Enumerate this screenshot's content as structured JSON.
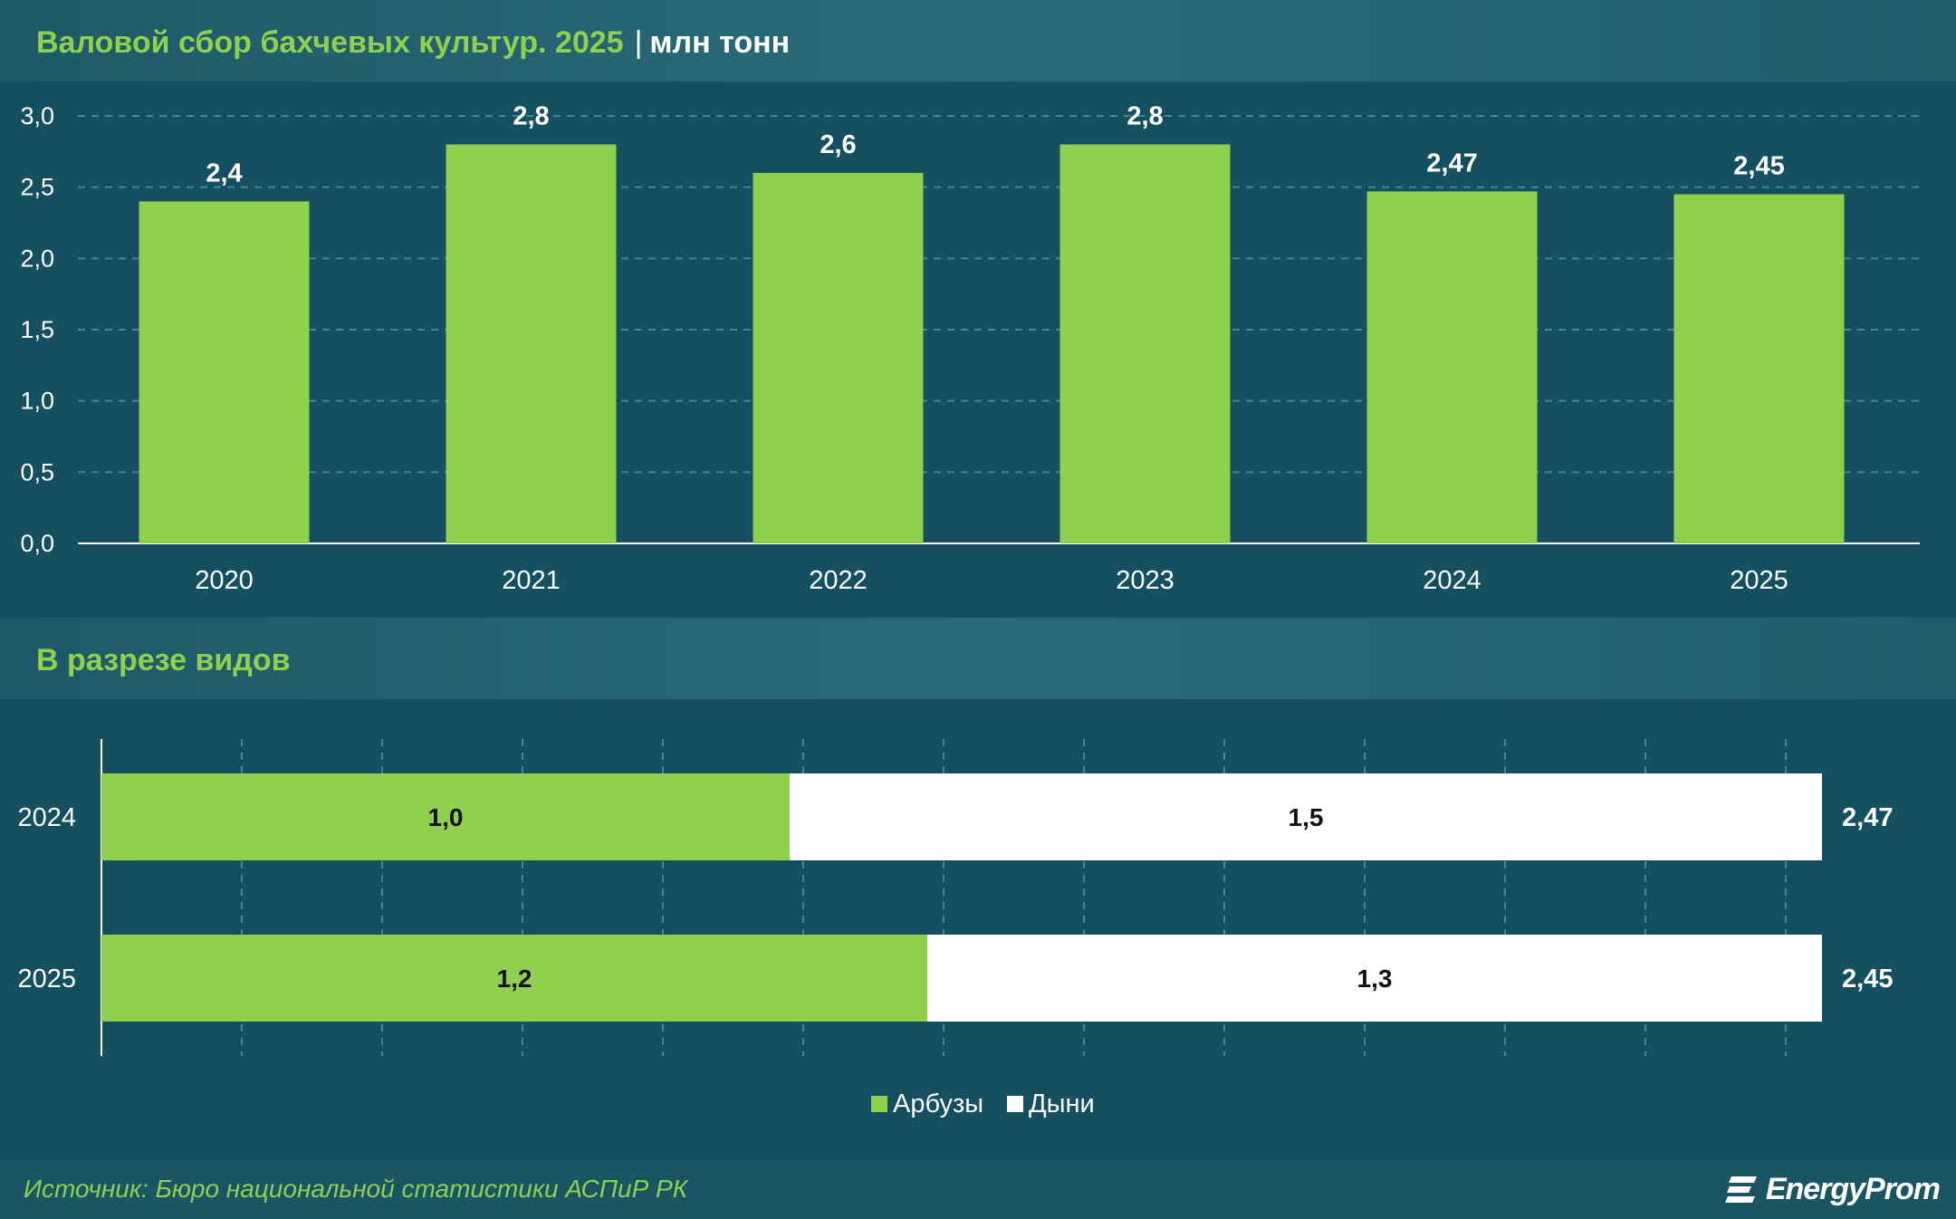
{
  "header": {
    "title": "Валовой сбор бахчевых культур. 2025",
    "separator": "|",
    "unit": "млн тонн"
  },
  "section2": {
    "title": "В разрезе видов"
  },
  "footer": {
    "source": "Источник: Бюро национальной статистики АСПиР РК",
    "logo_text": "EnergyProm",
    "logo_icon": "energyprom-logo-icon"
  },
  "colors": {
    "background": "#14505f",
    "bar_green": "#8fd14f",
    "melon_white": "#ffffff",
    "grid": "#3c8a98"
  },
  "chart_data": [
    {
      "type": "bar",
      "categories": [
        "2020",
        "2021",
        "2022",
        "2023",
        "2024",
        "2025"
      ],
      "values": [
        2.4,
        2.8,
        2.6,
        2.8,
        2.47,
        2.45
      ],
      "value_labels": [
        "2,4",
        "2,8",
        "2,6",
        "2,8",
        "2,47",
        "2,45"
      ],
      "y_ticks": [
        "0,0",
        "0,5",
        "1,0",
        "1,5",
        "2,0",
        "2,5",
        "3,0"
      ],
      "ylim": [
        0,
        3.0
      ],
      "grid": true
    },
    {
      "type": "bar",
      "orientation": "horizontal",
      "stacked": true,
      "categories": [
        "2024",
        "2025"
      ],
      "series": [
        {
          "name": "Арбузы",
          "values": [
            1.0,
            1.2
          ],
          "labels": [
            "1,0",
            "1,2"
          ]
        },
        {
          "name": "Дыни",
          "values": [
            1.5,
            1.3
          ],
          "labels": [
            "1,5",
            "1,3"
          ]
        }
      ],
      "totals": [
        2.47,
        2.45
      ],
      "total_labels": [
        "2,47",
        "2,45"
      ],
      "legend": "bottom-center",
      "grid": true
    }
  ]
}
